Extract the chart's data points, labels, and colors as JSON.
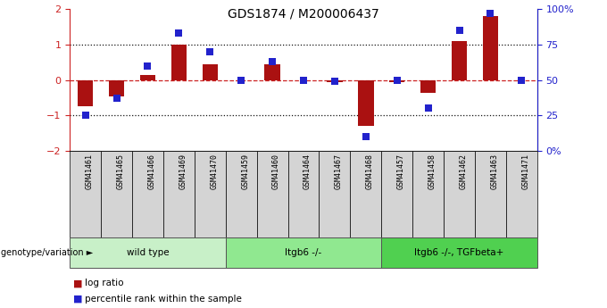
{
  "title": "GDS1874 / M200006437",
  "samples": [
    "GSM41461",
    "GSM41465",
    "GSM41466",
    "GSM41469",
    "GSM41470",
    "GSM41459",
    "GSM41460",
    "GSM41464",
    "GSM41467",
    "GSM41468",
    "GSM41457",
    "GSM41458",
    "GSM41462",
    "GSM41463",
    "GSM41471"
  ],
  "log_ratio": [
    -0.75,
    -0.45,
    0.15,
    1.0,
    0.45,
    0.0,
    0.45,
    0.0,
    -0.05,
    -1.3,
    -0.05,
    -0.35,
    1.1,
    1.8,
    0.0
  ],
  "percentile": [
    25,
    37,
    60,
    83,
    70,
    50,
    63,
    50,
    49,
    10,
    50,
    30,
    85,
    97,
    50
  ],
  "groups": [
    {
      "label": "wild type",
      "start": 0,
      "end": 5,
      "color": "#c8f0c8"
    },
    {
      "label": "Itgb6 -/-",
      "start": 5,
      "end": 10,
      "color": "#90e890"
    },
    {
      "label": "Itgb6 -/-, TGFbeta+",
      "start": 10,
      "end": 15,
      "color": "#50d050"
    }
  ],
  "bar_color": "#aa1111",
  "dot_color": "#2222cc",
  "zero_line_color": "#cc2222",
  "dotted_line_color": "#111111",
  "ylim_left": [
    -2,
    2
  ],
  "ylim_right": [
    0,
    100
  ],
  "yticks_left": [
    -2,
    -1,
    0,
    1,
    2
  ],
  "yticks_right": [
    0,
    25,
    50,
    75,
    100
  ],
  "ylabel_right_labels": [
    "0%",
    "25",
    "50",
    "75",
    "100%"
  ],
  "bar_width": 0.5,
  "dot_size": 28,
  "genotype_label": "genotype/variation"
}
